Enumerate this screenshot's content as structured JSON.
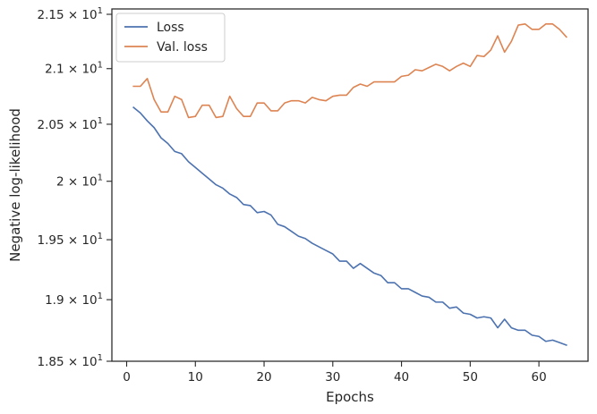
{
  "chart_data": {
    "type": "line",
    "title": "",
    "xlabel": "Epochs",
    "ylabel": "Negative log-likelihood",
    "yscale": "log",
    "xlim": [
      -2.15,
      67.15
    ],
    "ylim": [
      18.5,
      21.55
    ],
    "xticks": [
      0,
      10,
      20,
      30,
      40,
      50,
      60
    ],
    "xtick_labels": [
      "0",
      "10",
      "20",
      "30",
      "40",
      "50",
      "60"
    ],
    "yticks": [
      18.5,
      19.0,
      19.5,
      20.0,
      20.5,
      21.0,
      21.5
    ],
    "ytick_labels": [
      {
        "mant": "1.85",
        "base": "10",
        "exp": "1"
      },
      {
        "mant": "1.9",
        "base": "10",
        "exp": "1"
      },
      {
        "mant": "1.95",
        "base": "10",
        "exp": "1"
      },
      {
        "mant": "2",
        "base": "10",
        "exp": "1"
      },
      {
        "mant": "2.05",
        "base": "10",
        "exp": "1"
      },
      {
        "mant": "2.1",
        "base": "10",
        "exp": "1"
      },
      {
        "mant": "2.15",
        "base": "10",
        "exp": "1"
      }
    ],
    "times_sign": "×",
    "grid": false,
    "legend_position": "top-left",
    "series": [
      {
        "name": "Loss",
        "color": "#4c72b0",
        "x": [
          1,
          2,
          3,
          4,
          5,
          6,
          7,
          8,
          9,
          10,
          11,
          12,
          13,
          14,
          15,
          16,
          17,
          18,
          19,
          20,
          21,
          22,
          23,
          24,
          25,
          26,
          27,
          28,
          29,
          30,
          31,
          32,
          33,
          34,
          35,
          36,
          37,
          38,
          39,
          40,
          41,
          42,
          43,
          44,
          45,
          46,
          47,
          48,
          49,
          50,
          51,
          52,
          53,
          54,
          55,
          56,
          57,
          58,
          59,
          60,
          61,
          62,
          63,
          64
        ],
        "y": [
          20.65,
          20.6,
          20.53,
          20.47,
          20.38,
          20.33,
          20.26,
          20.24,
          20.17,
          20.12,
          20.07,
          20.02,
          19.97,
          19.94,
          19.89,
          19.86,
          19.8,
          19.79,
          19.73,
          19.74,
          19.71,
          19.63,
          19.61,
          19.57,
          19.53,
          19.51,
          19.47,
          19.44,
          19.41,
          19.38,
          19.32,
          19.32,
          19.26,
          19.3,
          19.26,
          19.22,
          19.2,
          19.14,
          19.14,
          19.09,
          19.09,
          19.06,
          19.03,
          19.02,
          18.98,
          18.98,
          18.93,
          18.94,
          18.89,
          18.88,
          18.85,
          18.86,
          18.85,
          18.77,
          18.84,
          18.77,
          18.75,
          18.75,
          18.71,
          18.7,
          18.66,
          18.67,
          18.65,
          18.63
        ]
      },
      {
        "name": "Val. loss",
        "color": "#dd8452",
        "x": [
          1,
          2,
          3,
          4,
          5,
          6,
          7,
          8,
          9,
          10,
          11,
          12,
          13,
          14,
          15,
          16,
          17,
          18,
          19,
          20,
          21,
          22,
          23,
          24,
          25,
          26,
          27,
          28,
          29,
          30,
          31,
          32,
          33,
          34,
          35,
          36,
          37,
          38,
          39,
          40,
          41,
          42,
          43,
          44,
          45,
          46,
          47,
          48,
          49,
          50,
          51,
          52,
          53,
          54,
          55,
          56,
          57,
          58,
          59,
          60,
          61,
          62,
          63,
          64
        ],
        "y": [
          20.84,
          20.84,
          20.91,
          20.72,
          20.61,
          20.61,
          20.75,
          20.72,
          20.56,
          20.57,
          20.67,
          20.67,
          20.56,
          20.57,
          20.75,
          20.64,
          20.57,
          20.57,
          20.69,
          20.69,
          20.62,
          20.62,
          20.69,
          20.71,
          20.71,
          20.69,
          20.74,
          20.72,
          20.71,
          20.75,
          20.76,
          20.76,
          20.83,
          20.86,
          20.84,
          20.88,
          20.88,
          20.88,
          20.88,
          20.93,
          20.94,
          20.99,
          20.98,
          21.01,
          21.04,
          21.02,
          20.98,
          21.02,
          21.05,
          21.02,
          21.12,
          21.11,
          21.17,
          21.3,
          21.15,
          21.25,
          21.4,
          21.41,
          21.36,
          21.36,
          21.41,
          21.41,
          21.36,
          21.29
        ]
      }
    ]
  }
}
